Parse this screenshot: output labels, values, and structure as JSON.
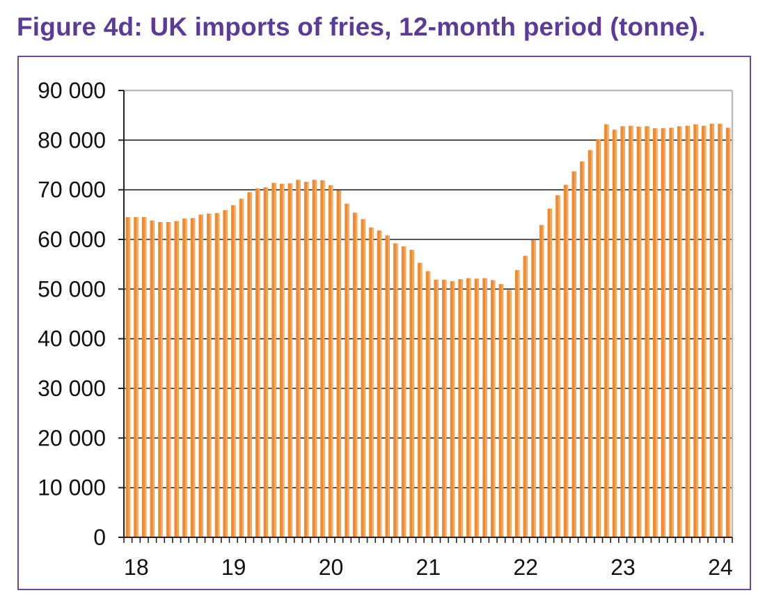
{
  "title": "Figure 4d: UK imports of fries, 12-month period (tonne).",
  "colors": {
    "bar": "#f08a2e",
    "bar_highlight": "#f7c08a",
    "title": "#5b3a99",
    "frame": "#6a46a8",
    "grid": "#222222"
  },
  "chart_data": {
    "type": "bar",
    "ylim": [
      0,
      90000
    ],
    "yticks": [
      0,
      10000,
      20000,
      30000,
      40000,
      50000,
      60000,
      70000,
      80000,
      90000
    ],
    "ytick_labels": [
      "0",
      "10 000",
      "20 000",
      "30 000",
      "40 000",
      "50 000",
      "60 000",
      "70 000",
      "80 000",
      "90 000"
    ],
    "year_labels": [
      "18",
      "19",
      "20",
      "21",
      "22",
      "23",
      "24"
    ],
    "grid": true,
    "values": [
      64500,
      64500,
      64500,
      63800,
      63500,
      63500,
      63700,
      64200,
      64300,
      65000,
      65200,
      65300,
      65900,
      66900,
      68200,
      69500,
      70300,
      70500,
      71400,
      71200,
      71300,
      72000,
      71600,
      72000,
      71900,
      70900,
      69900,
      67200,
      65400,
      64100,
      62400,
      61800,
      60800,
      59200,
      58600,
      57900,
      55300,
      53600,
      51900,
      51900,
      51600,
      52000,
      52200,
      52100,
      52200,
      51800,
      51000,
      49800,
      53800,
      56700,
      59900,
      62900,
      66200,
      68900,
      71000,
      73700,
      75700,
      78000,
      80200,
      83200,
      82100,
      82800,
      82900,
      82700,
      82800,
      82400,
      82400,
      82500,
      82800,
      82900,
      83200,
      82900,
      83300,
      83300,
      82500
    ]
  }
}
